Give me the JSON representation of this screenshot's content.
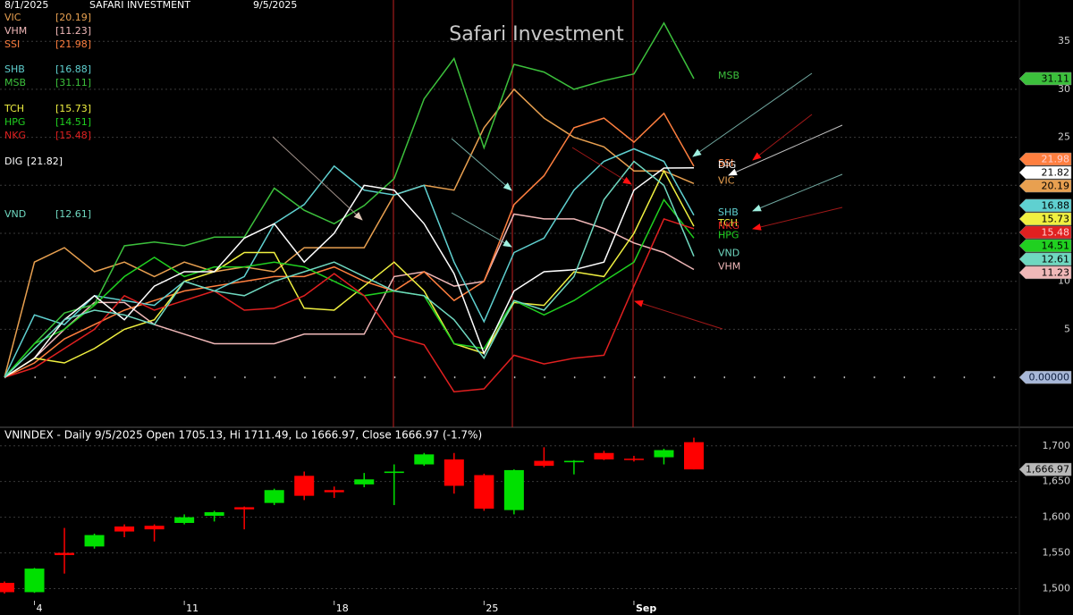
{
  "header": {
    "start_date": "8/1/2025",
    "name": "SAFARI INVESTMENT",
    "end_date": "9/5/2025"
  },
  "chart_data": [
    {
      "type": "line",
      "title": "Safari Investment",
      "categories": [
        null,
        "4",
        null,
        null,
        null,
        null,
        "11",
        null,
        null,
        null,
        null,
        "18",
        null,
        null,
        null,
        null,
        "25",
        null,
        null,
        null,
        null,
        "Sep",
        null,
        null
      ],
      "ylim": [
        -5.2,
        39.3
      ],
      "yticks": [
        5,
        10,
        15,
        20,
        25,
        30,
        35
      ],
      "grid": true,
      "baseline": {
        "value": 0,
        "label": "0.00000"
      },
      "series": [
        {
          "name": "VIC",
          "legend_label": "[20.19]",
          "color": "#e8a050",
          "values": [
            0,
            12,
            13.5,
            11,
            12,
            10.5,
            12,
            11,
            11.5,
            11,
            13.5,
            13.5,
            13.5,
            19,
            20,
            19.5,
            26,
            30,
            27,
            25,
            24,
            21.5,
            21.5,
            20.19
          ]
        },
        {
          "name": "VHM",
          "legend_label": "[11.23]",
          "color": "#f0b8b8",
          "values": [
            0,
            2,
            5,
            7.8,
            7.8,
            5.5,
            4.5,
            3.5,
            3.5,
            3.5,
            4.5,
            4.5,
            4.5,
            10.5,
            11,
            9.5,
            10,
            17,
            16.5,
            16.5,
            15.5,
            14,
            13,
            11.23
          ]
        },
        {
          "name": "SSI",
          "legend_label": "[21.98]",
          "color": "#ff7f3f",
          "values": [
            0,
            1.5,
            4,
            5.5,
            7,
            8,
            9,
            9.5,
            10,
            10.5,
            10.5,
            11.5,
            10,
            9,
            11,
            8,
            10,
            18,
            21,
            26,
            27,
            24.5,
            27.5,
            21.98
          ]
        },
        {
          "name": "SHB",
          "legend_label": "[16.88]",
          "color": "#5fd0d0",
          "values": [
            0,
            6.5,
            5.5,
            8.5,
            8,
            7.5,
            10,
            9,
            10.5,
            16,
            18,
            22,
            19.5,
            19,
            20,
            12,
            5.8,
            13,
            14.5,
            19.5,
            22.5,
            23.8,
            22.5,
            16.88
          ]
        },
        {
          "name": "MSB",
          "legend_label": "[31.11]",
          "color": "#3cc03c",
          "values": [
            0,
            3.5,
            6.7,
            7.6,
            13.7,
            14.1,
            13.7,
            14.6,
            14.6,
            19.7,
            17.4,
            16,
            17.9,
            20.7,
            29,
            33.2,
            23.9,
            32.6,
            31.8,
            30,
            30.9,
            31.6,
            36.9,
            31.11
          ]
        },
        {
          "name": "TCH",
          "legend_label": "[15.73]",
          "color": "#f0f040",
          "values": [
            0,
            2,
            1.5,
            3,
            5,
            6,
            10,
            11,
            13,
            13,
            7.2,
            7,
            9.5,
            12,
            9,
            3.5,
            2.5,
            7.8,
            7.5,
            11,
            10.5,
            15,
            21.5,
            15.73
          ]
        },
        {
          "name": "HPG",
          "legend_label": "[14.51]",
          "color": "#20d020",
          "values": [
            0,
            3.5,
            5,
            7.5,
            10.5,
            12.5,
            10.5,
            11.5,
            11.5,
            12,
            11.5,
            10,
            8.5,
            9,
            8.5,
            3.5,
            3,
            8,
            6.5,
            8,
            10,
            12,
            18.5,
            14.51
          ]
        },
        {
          "name": "NKG",
          "legend_label": "[15.48]",
          "color": "#e02020",
          "values": [
            0,
            1,
            3,
            5,
            8.5,
            7,
            8,
            9,
            7,
            7.2,
            8.5,
            10.8,
            8.5,
            4.3,
            3.4,
            -1.5,
            -1.2,
            2.3,
            1.4,
            2,
            2.3,
            9.5,
            16.5,
            15.48
          ]
        },
        {
          "name": "DIG",
          "legend_label": "[21.82]",
          "color": "#ffffff",
          "values": [
            0,
            2,
            6,
            8.5,
            6,
            9.5,
            11,
            11,
            14.5,
            16,
            12,
            15,
            20,
            19.5,
            16,
            10.8,
            2.5,
            9,
            11,
            11.2,
            12,
            19.5,
            21.8,
            21.82
          ]
        },
        {
          "name": "VND",
          "legend_label": "[12.61]",
          "color": "#6fd8c0",
          "values": [
            0,
            3,
            6,
            7,
            6.5,
            5.5,
            10,
            9,
            8.5,
            10,
            11,
            12,
            10.5,
            9,
            8.5,
            6,
            2,
            8,
            7,
            10.5,
            18.5,
            22.5,
            20,
            12.61
          ]
        }
      ]
    },
    {
      "type": "candlestick",
      "header": "VNINDEX - Daily 9/5/2025 Open 1705.13, Hi 1711.49, Lo 1666.97, Close 1666.97 (-1.7%)",
      "last_label": "1,666.97",
      "ylim": [
        1463,
        1726
      ],
      "yticks": [
        {
          "value": 1500,
          "label": "1,500"
        },
        {
          "value": 1550,
          "label": "1,550"
        },
        {
          "value": 1600,
          "label": "1,600"
        },
        {
          "value": 1650,
          "label": "1,650"
        },
        {
          "value": 1700,
          "label": "1,700"
        }
      ],
      "grid": true,
      "up_color": "#00e000",
      "down_color": "#ff0000",
      "open": [
        1508,
        1495,
        1550,
        1559,
        1587,
        1588,
        1592,
        1602,
        1614,
        1620,
        1658,
        1638,
        1646,
        1662,
        1674,
        1681,
        1659,
        1610,
        1679,
        1677,
        1690,
        1682,
        1684,
        1705.13
      ],
      "high": [
        1510,
        1529,
        1585,
        1577,
        1590,
        1590,
        1604,
        1609,
        1615,
        1640,
        1664,
        1643,
        1662,
        1674,
        1690,
        1690,
        1661,
        1667,
        1698,
        1680,
        1693,
        1686,
        1696,
        1711.49
      ],
      "low": [
        1493,
        1494,
        1521,
        1556,
        1572,
        1566,
        1590,
        1594,
        1583,
        1617,
        1624,
        1627,
        1642,
        1617,
        1672,
        1633,
        1609,
        1604,
        1670,
        1660,
        1680,
        1678,
        1674,
        1666.97
      ],
      "close": [
        1495,
        1528,
        1547,
        1575,
        1580,
        1583,
        1600,
        1607,
        1611,
        1638,
        1630,
        1635,
        1653,
        1664,
        1688,
        1644,
        1612,
        1666,
        1672,
        1679,
        1681,
        1681,
        1694,
        1666.97
      ]
    }
  ]
}
